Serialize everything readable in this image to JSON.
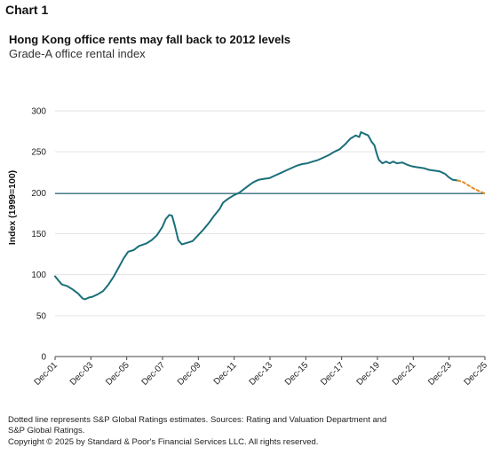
{
  "header": {
    "chart_label": "Chart 1",
    "title": "Hong Kong office rents may fall back to 2012 levels",
    "subtitle": "Grade-A office rental index"
  },
  "footer": {
    "note": "Dotted line represents S&P Global Ratings estimates. Sources: Rating and Valuation Department and S&P Global Ratings.",
    "copyright": "Copyright © 2025 by Standard & Poor's Financial Services LLC. All rights reserved."
  },
  "chart_data": {
    "type": "line",
    "title": "Hong Kong office rents may fall back to 2012 levels",
    "subtitle": "Grade-A office rental index",
    "ylabel": "Index (1999=100)",
    "xlabel": "",
    "ylim": [
      0,
      300
    ],
    "yticks": [
      0,
      50,
      100,
      150,
      200,
      250,
      300
    ],
    "x_tick_labels": [
      "Dec-01",
      "Dec-03",
      "Dec-05",
      "Dec-07",
      "Dec-09",
      "Dec-11",
      "Dec-13",
      "Dec-15",
      "Dec-17",
      "Dec-19",
      "Dec-21",
      "Dec-23",
      "Dec-25"
    ],
    "x_start": 2001.917,
    "x_end": 2025.917,
    "grid": "horizontal",
    "reference_line": {
      "value": 199,
      "color": "#2e6e80"
    },
    "colors": {
      "actual": "#1a6f7a",
      "estimate": "#e08a1e",
      "grid": "#e3e3e3",
      "axis": "#444444"
    },
    "series": [
      {
        "style": "solid",
        "points": [
          [
            2001.917,
            98
          ],
          [
            2002.1,
            93
          ],
          [
            2002.3,
            88
          ],
          [
            2002.6,
            86
          ],
          [
            2002.9,
            82
          ],
          [
            2003.2,
            77
          ],
          [
            2003.45,
            71
          ],
          [
            2003.6,
            70
          ],
          [
            2003.8,
            72
          ],
          [
            2004.0,
            73
          ],
          [
            2004.3,
            76
          ],
          [
            2004.6,
            80
          ],
          [
            2004.9,
            88
          ],
          [
            2005.2,
            98
          ],
          [
            2005.5,
            110
          ],
          [
            2005.75,
            120
          ],
          [
            2006.0,
            128
          ],
          [
            2006.3,
            130
          ],
          [
            2006.6,
            135
          ],
          [
            2007.0,
            138
          ],
          [
            2007.3,
            142
          ],
          [
            2007.6,
            148
          ],
          [
            2007.9,
            158
          ],
          [
            2008.1,
            168
          ],
          [
            2008.3,
            173
          ],
          [
            2008.45,
            172
          ],
          [
            2008.6,
            160
          ],
          [
            2008.8,
            142
          ],
          [
            2009.0,
            137
          ],
          [
            2009.3,
            139
          ],
          [
            2009.6,
            141
          ],
          [
            2009.9,
            148
          ],
          [
            2010.2,
            155
          ],
          [
            2010.5,
            163
          ],
          [
            2010.8,
            172
          ],
          [
            2011.1,
            180
          ],
          [
            2011.3,
            188
          ],
          [
            2011.6,
            193
          ],
          [
            2011.9,
            197
          ],
          [
            2012.2,
            200
          ],
          [
            2012.5,
            205
          ],
          [
            2012.8,
            210
          ],
          [
            2013.0,
            213
          ],
          [
            2013.3,
            216
          ],
          [
            2013.6,
            217
          ],
          [
            2013.9,
            218
          ],
          [
            2014.2,
            221
          ],
          [
            2014.5,
            224
          ],
          [
            2014.8,
            227
          ],
          [
            2015.1,
            230
          ],
          [
            2015.4,
            233
          ],
          [
            2015.7,
            235
          ],
          [
            2016.0,
            236
          ],
          [
            2016.3,
            238
          ],
          [
            2016.6,
            240
          ],
          [
            2016.9,
            243
          ],
          [
            2017.2,
            246
          ],
          [
            2017.5,
            250
          ],
          [
            2017.8,
            253
          ],
          [
            2018.1,
            259
          ],
          [
            2018.4,
            266
          ],
          [
            2018.7,
            270
          ],
          [
            2018.9,
            268
          ],
          [
            2019.0,
            274
          ],
          [
            2019.2,
            272
          ],
          [
            2019.4,
            270
          ],
          [
            2019.6,
            262
          ],
          [
            2019.75,
            258
          ],
          [
            2019.9,
            246
          ],
          [
            2020.0,
            240
          ],
          [
            2020.2,
            236
          ],
          [
            2020.4,
            238
          ],
          [
            2020.6,
            236
          ],
          [
            2020.8,
            238
          ],
          [
            2021.0,
            236
          ],
          [
            2021.3,
            237
          ],
          [
            2021.6,
            234
          ],
          [
            2021.9,
            232
          ],
          [
            2022.2,
            231
          ],
          [
            2022.5,
            230
          ],
          [
            2022.8,
            228
          ],
          [
            2023.1,
            227
          ],
          [
            2023.4,
            226
          ],
          [
            2023.7,
            223
          ],
          [
            2023.9,
            219
          ],
          [
            2024.1,
            216
          ],
          [
            2024.4,
            215
          ]
        ]
      },
      {
        "style": "dotted",
        "points": [
          [
            2024.4,
            215
          ],
          [
            2024.7,
            213
          ],
          [
            2025.0,
            209
          ],
          [
            2025.3,
            205
          ],
          [
            2025.6,
            202
          ],
          [
            2025.917,
            199
          ]
        ]
      }
    ]
  }
}
